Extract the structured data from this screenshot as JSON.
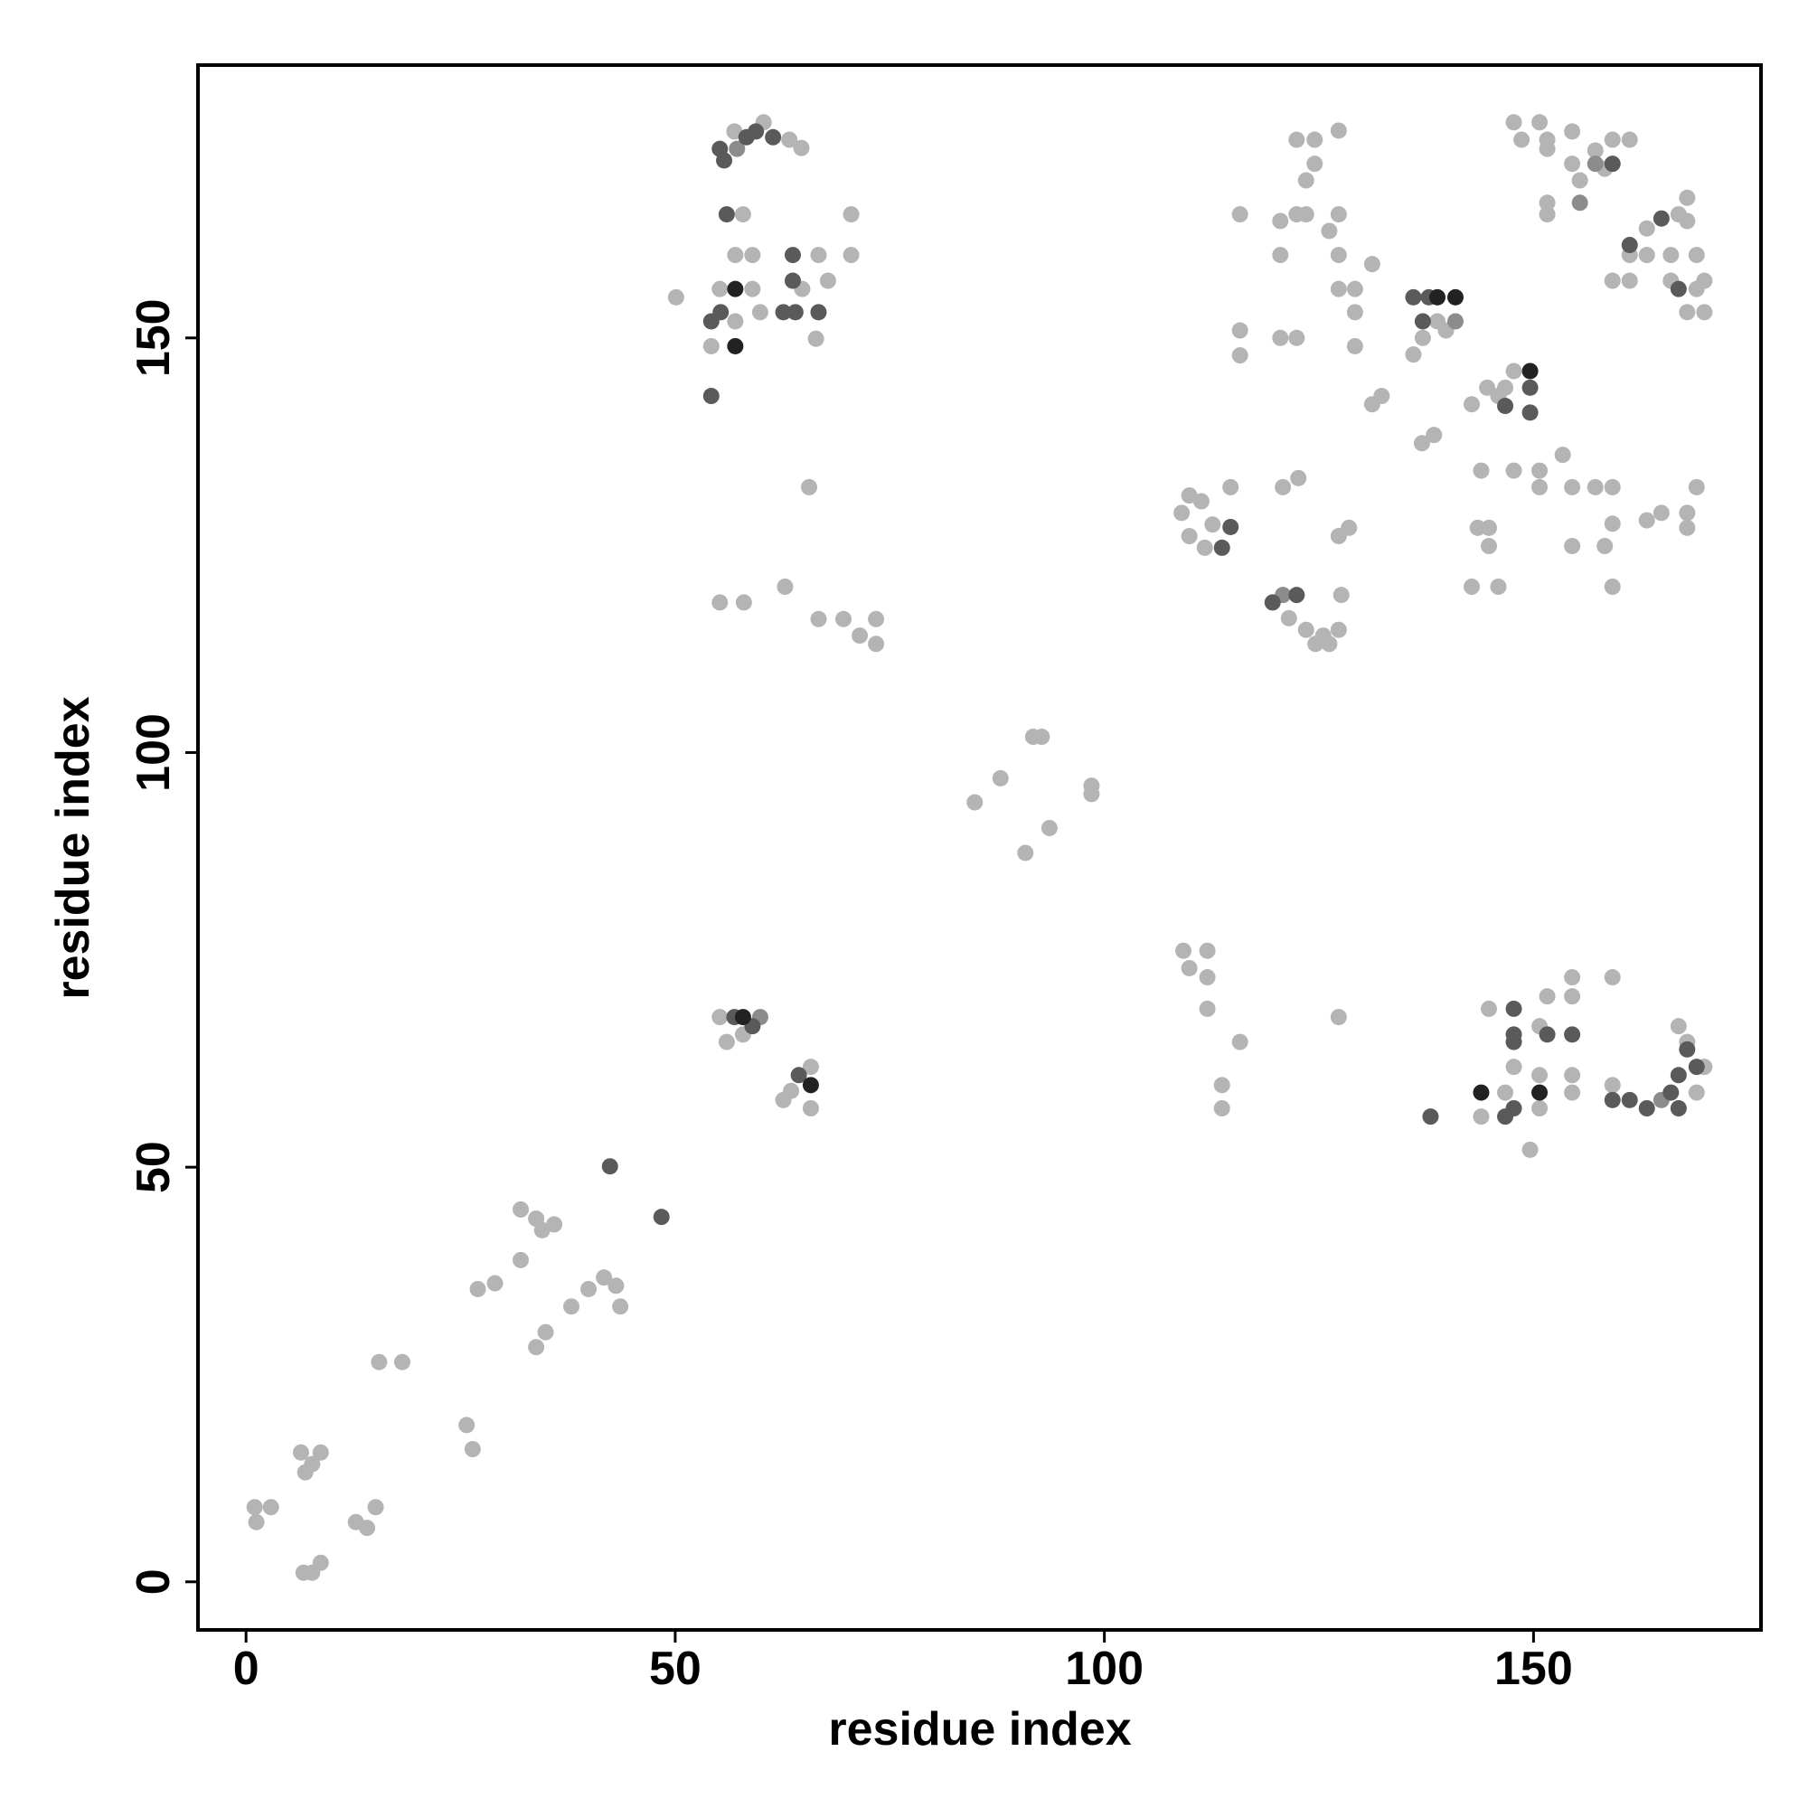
{
  "chart_data": {
    "type": "scatter",
    "xlabel": "residue index",
    "ylabel": "residue index",
    "xlim": [
      -5.6,
      176.5
    ],
    "ylim": [
      -5.8,
      182.9
    ],
    "xticks": [
      0,
      50,
      100,
      150
    ],
    "yticks": [
      0,
      50,
      100,
      150
    ],
    "series": [
      {
        "color": "#b4b4b4",
        "x": [
          1.2,
          1,
          2.9,
          6.4,
          6.9,
          8.7,
          7.7,
          6.7,
          8.7,
          7.7,
          12.8,
          15.1,
          14.1,
          15.5,
          18.2,
          25.7,
          26.4,
          27,
          29,
          32,
          32,
          33.8,
          34.5,
          35.9,
          33.8,
          34.9,
          37.9,
          39.9,
          41.7,
          43.1,
          43.6,
          55.2,
          56,
          57.9,
          62.6,
          65.8,
          65.8,
          63.5,
          84.9,
          87.9,
          91.7,
          92.7,
          93.6,
          90.8,
          98.5,
          98.5,
          56.9,
          60.3,
          63.3,
          64.7,
          57.9,
          50.1,
          55.2,
          59,
          54.2,
          57,
          57,
          59,
          59.9,
          66.7,
          67.8,
          70.5,
          70.5,
          66.4,
          64.8,
          65.6,
          55.2,
          58,
          62.8,
          66.7,
          69.6,
          71.5,
          73.4,
          73.4,
          109,
          109.9,
          111.3,
          112.6,
          111.7,
          114.7,
          109.9,
          121.5,
          123.5,
          125.5,
          127.6,
          127.3,
          124.6,
          126.2,
          120.8,
          122.6,
          127.3,
          128.5,
          109.2,
          109.9,
          112,
          112,
          112,
          115.8,
          113.7,
          113.7,
          127.3,
          115.8,
          115.8,
          115.8,
          120.5,
          122.4,
          120.5,
          120.5,
          122.4,
          123.5,
          122.4,
          124.5,
          124.5,
          123.5,
          127.3,
          126.2,
          127.3,
          127.3,
          127.3,
          129.2,
          129.2,
          129.2,
          131.2,
          131.2,
          132.3,
          138.8,
          136,
          137.1,
          139.8,
          137,
          138.4,
          142.8,
          144.6,
          146.7,
          147.7,
          145.9,
          143.9,
          147.7,
          150.7,
          150.7,
          153.4,
          154.5,
          157.2,
          159.2,
          159.2,
          158.3,
          154.5,
          143.5,
          144.8,
          144.8,
          142.8,
          145.9,
          159.2,
          163.2,
          164.9,
          167.9,
          167.9,
          169,
          147.7,
          148.6,
          150.7,
          151.6,
          151.6,
          154.5,
          154.5,
          155.4,
          157.2,
          158.3,
          159.2,
          161.2,
          151.6,
          151.6,
          163.2,
          166.9,
          167.9,
          167.9,
          161.2,
          163.2,
          166,
          169,
          169,
          169.9,
          167.9,
          169.9,
          159.2,
          161.2,
          166,
          143.9,
          144.8,
          146.7,
          147.7,
          150.7,
          150.7,
          150.7,
          151.6,
          149.6,
          154.5,
          154.5,
          154.5,
          154.5,
          159.2,
          159.2,
          166.9,
          167.9,
          169.9,
          169
        ],
        "values": [
          7.2,
          9,
          9,
          15.6,
          13.2,
          15.6,
          14.2,
          1.1,
          2.3,
          1.1,
          7.2,
          9,
          6.5,
          26.5,
          26.5,
          18.9,
          16,
          35.3,
          36,
          38.8,
          44.9,
          43.8,
          42.4,
          43.1,
          28.3,
          30.1,
          33.2,
          35.3,
          36.7,
          35.7,
          33.2,
          68.1,
          65.1,
          66,
          58.1,
          62.1,
          57.1,
          59.2,
          94,
          96.9,
          101.9,
          101.9,
          90.9,
          87.9,
          96,
          95,
          174.9,
          176,
          173.9,
          172.9,
          164.9,
          154.9,
          155.9,
          155.9,
          149,
          152,
          160,
          160,
          153.1,
          160,
          156.9,
          160,
          164.9,
          149.9,
          155.9,
          132,
          118.1,
          118.1,
          120,
          116.1,
          116.1,
          114.1,
          116.1,
          113.1,
          128.9,
          126.1,
          130.3,
          127.5,
          124.7,
          132,
          131,
          116.2,
          114.8,
          114.1,
          119,
          114.8,
          113.1,
          113.1,
          132,
          133.1,
          126.1,
          127.1,
          76.1,
          74,
          76.1,
          72.9,
          69.1,
          65.1,
          59.9,
          57.1,
          68.1,
          164.9,
          150.9,
          147.9,
          150,
          150,
          160,
          164.1,
          164.9,
          164.9,
          173.9,
          173.9,
          171,
          169,
          175,
          162.9,
          164.9,
          160,
          155.9,
          155.9,
          153.1,
          149,
          158.9,
          142,
          143,
          152,
          148,
          150,
          150.9,
          137.3,
          138.3,
          142,
          144,
          144,
          146,
          143,
          134,
          134,
          134,
          132,
          135.9,
          132,
          132,
          132,
          127.6,
          124.9,
          124.9,
          127.1,
          127.1,
          124.9,
          120,
          120,
          120,
          128,
          128.9,
          128.9,
          127.1,
          132,
          176,
          173.9,
          176,
          173.9,
          172.8,
          174.9,
          171,
          169,
          172.6,
          170.4,
          173.9,
          173.9,
          166.3,
          164.9,
          163.2,
          164.9,
          166.9,
          164.1,
          160,
          160,
          160,
          160,
          155.9,
          156.9,
          153.1,
          153.1,
          156.9,
          156.9,
          156.9,
          56.1,
          69.1,
          59,
          62.1,
          57.1,
          61.1,
          67,
          70.6,
          52.1,
          70.6,
          72.9,
          61.1,
          59,
          72.9,
          59.9,
          67,
          65.1,
          62.1,
          59
        ]
      },
      {
        "color": "#8c8c8c",
        "x": [
          59.9,
          57.2,
          120.8,
          140.9,
          155.4,
          157.2,
          164.9
        ],
        "values": [
          68.1,
          172.8,
          119,
          152,
          166.3,
          171,
          58.1
        ]
      },
      {
        "color": "#5a5a5a",
        "x": [
          42.4,
          48.4,
          56.9,
          59,
          64.4,
          55.2,
          55.7,
          58.3,
          59.4,
          61.4,
          56,
          54.2,
          55.3,
          63.7,
          63.7,
          62.6,
          64,
          66.7,
          54.2,
          113.7,
          114.7,
          119.6,
          122.4,
          136,
          137.8,
          137.1,
          146.7,
          149.6,
          149.6,
          159.2,
          161.2,
          164.9,
          166.9,
          146.7,
          147.7,
          147.7,
          147.7,
          147.7,
          151.6,
          154.5,
          159.2,
          138,
          161.2,
          163.2,
          167.9,
          166.9,
          169,
          166,
          166.9
        ],
        "values": [
          50.1,
          44,
          68.1,
          67,
          61.1,
          172.8,
          171.4,
          174.2,
          174.9,
          174.2,
          164.9,
          152,
          153.1,
          160,
          156.9,
          153.1,
          153.1,
          153.1,
          143,
          124.7,
          127.2,
          118.1,
          119,
          154.9,
          154.9,
          152,
          141.8,
          144,
          141,
          171,
          161.2,
          164.4,
          155.9,
          56.1,
          57.1,
          69.1,
          66,
          65.1,
          66,
          66,
          58.1,
          56.1,
          58.1,
          57.1,
          64.2,
          61.1,
          62.1,
          59,
          57.1
        ]
      },
      {
        "color": "#222222",
        "x": [
          57.9,
          65.8,
          57,
          57,
          138.8,
          140.9,
          149.6,
          143.9,
          150.7
        ],
        "values": [
          68.1,
          59.9,
          155.9,
          149,
          154.9,
          154.9,
          146,
          59,
          59
        ]
      }
    ]
  }
}
